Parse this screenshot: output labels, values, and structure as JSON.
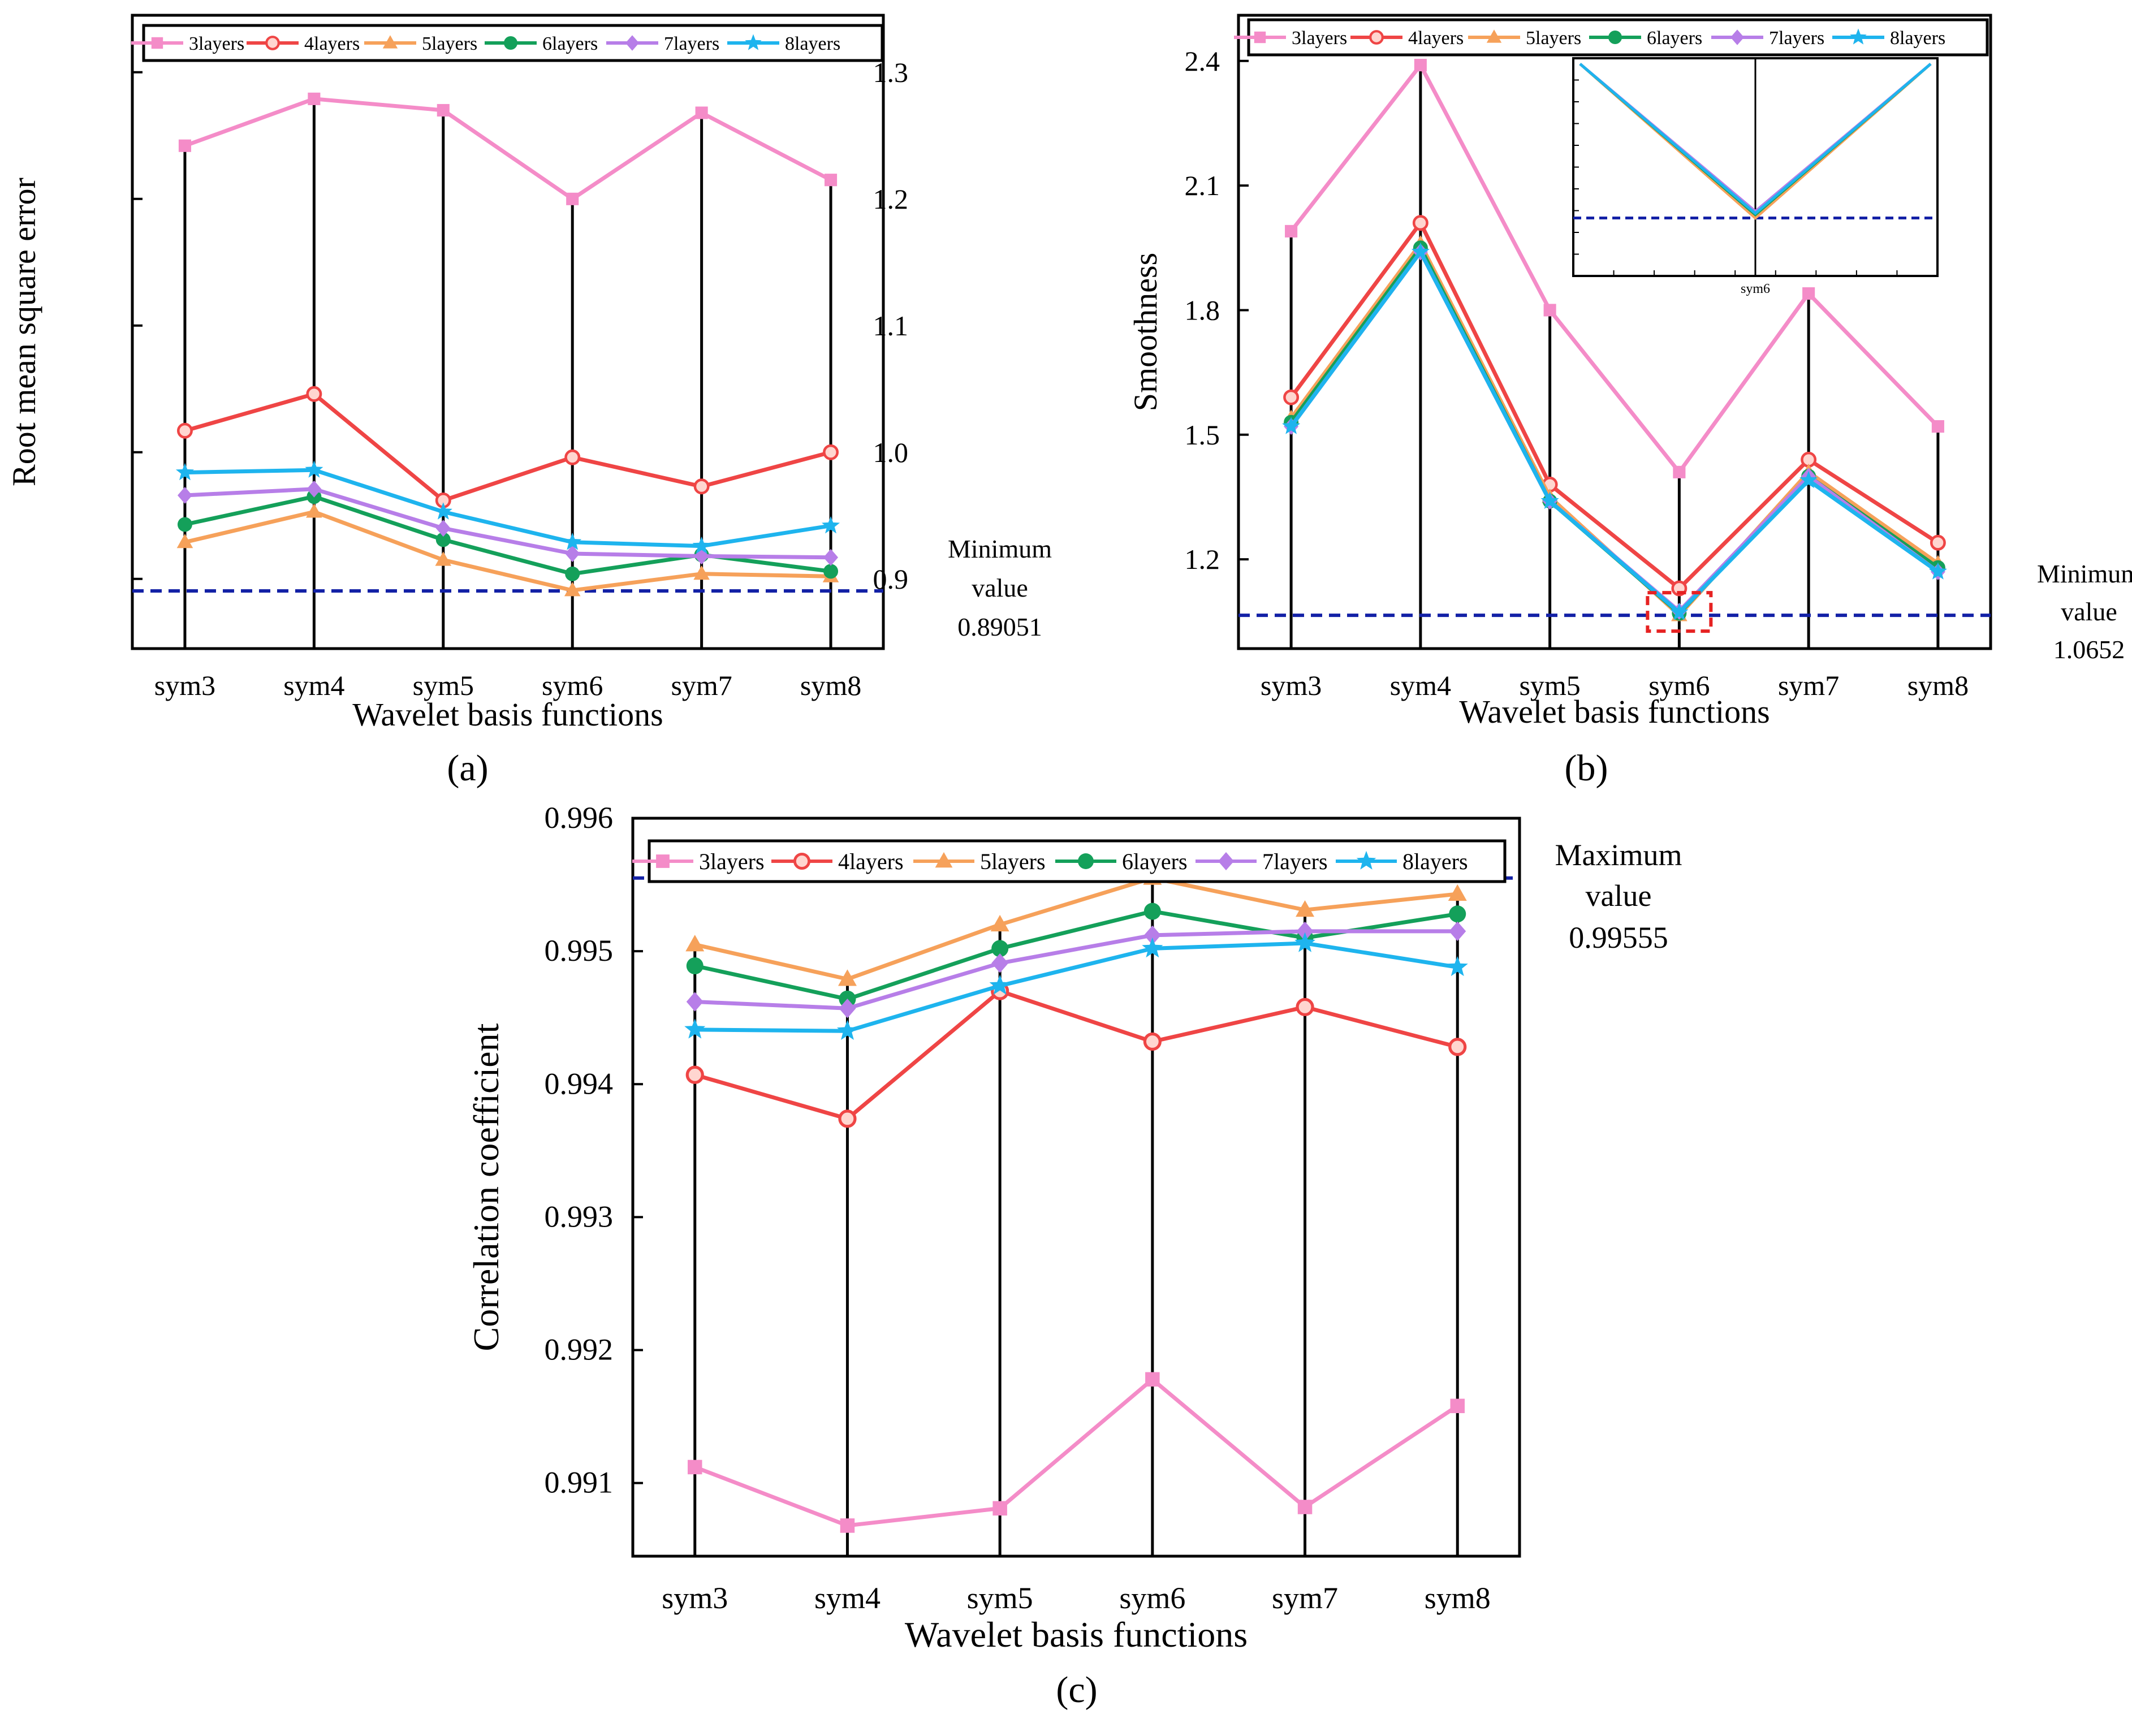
{
  "figure": {
    "panel_labels": [
      {
        "text": "(a)",
        "letter": "a"
      },
      {
        "text": "(b)",
        "letter": "b"
      },
      {
        "text": "(c)",
        "letter": "c"
      }
    ]
  },
  "colors": {
    "3layers": "#f48cc8",
    "4layers": "#ef4545",
    "5layers": "#f6a15a",
    "6layers": "#14a05a",
    "7layers": "#b77ee8",
    "8layers": "#1eb4ee",
    "reference_line": "#1321a6",
    "stems": "#000000",
    "highlight_box": "#e62222"
  },
  "legend_labels": [
    "3layers",
    "4layers",
    "5layers",
    "6layers",
    "7layers",
    "8layers"
  ],
  "chart_data": [
    {
      "id": "a",
      "type": "line",
      "panel_label": "(a)",
      "title": "",
      "xlabel": "Wavelet  basis  functions",
      "ylabel": "Root mean square error",
      "categories": [
        "sym3",
        "sym4",
        "sym5",
        "sym6",
        "sym7",
        "sym8"
      ],
      "ylim": [
        0.845,
        1.345
      ],
      "yticks": [
        0.9,
        1.0,
        1.1,
        1.2,
        1.3
      ],
      "ytick_labels": [
        "0.9",
        "1.0",
        "1.1",
        "1.2",
        "1.3"
      ],
      "stem_from": 0.845,
      "stem_to_series": "3layers",
      "reference_line": {
        "value": 0.89051,
        "label_lines": [
          "Minimum",
          "value",
          "0.89051"
        ]
      },
      "series": [
        {
          "name": "3layers",
          "marker": "square",
          "values": [
            1.242,
            1.279,
            1.27,
            1.2,
            1.268,
            1.215
          ]
        },
        {
          "name": "4layers",
          "marker": "circle",
          "values": [
            1.017,
            1.046,
            0.962,
            0.996,
            0.973,
            1.0
          ]
        },
        {
          "name": "5layers",
          "marker": "triangle",
          "values": [
            0.929,
            0.953,
            0.915,
            0.891,
            0.904,
            0.902
          ]
        },
        {
          "name": "6layers",
          "marker": "circle-filled",
          "values": [
            0.943,
            0.965,
            0.931,
            0.904,
            0.919,
            0.906
          ]
        },
        {
          "name": "7layers",
          "marker": "diamond",
          "values": [
            0.966,
            0.971,
            0.94,
            0.92,
            0.918,
            0.917
          ]
        },
        {
          "name": "8layers",
          "marker": "star",
          "values": [
            0.984,
            0.986,
            0.953,
            0.929,
            0.926,
            0.942
          ]
        }
      ]
    },
    {
      "id": "b",
      "type": "line",
      "panel_label": "(b)",
      "title": "",
      "xlabel": "Wavelet basis functions",
      "ylabel": "Smoothness",
      "categories": [
        "sym3",
        "sym4",
        "sym5",
        "sym6",
        "sym7",
        "sym8"
      ],
      "ylim": [
        0.985,
        2.51
      ],
      "yticks": [
        1.2,
        1.5,
        1.8,
        2.1,
        2.4
      ],
      "ytick_labels": [
        "1.2",
        "1.5",
        "1.8",
        "2.1",
        "2.4"
      ],
      "stem_from": 0.985,
      "stem_to_series": "3layers",
      "reference_line": {
        "value": 1.0652,
        "label_lines": [
          "Minimum",
          "value",
          "1.0652"
        ]
      },
      "highlight_category": "sym6",
      "inset": {
        "category_label": "sym6"
      },
      "series": [
        {
          "name": "3layers",
          "marker": "square",
          "values": [
            1.99,
            2.39,
            1.8,
            1.41,
            1.84,
            1.52
          ]
        },
        {
          "name": "4layers",
          "marker": "circle",
          "values": [
            1.59,
            2.01,
            1.38,
            1.13,
            1.44,
            1.24
          ]
        },
        {
          "name": "5layers",
          "marker": "triangle",
          "values": [
            1.54,
            1.96,
            1.35,
            1.0652,
            1.41,
            1.19
          ]
        },
        {
          "name": "6layers",
          "marker": "circle-filled",
          "values": [
            1.53,
            1.95,
            1.34,
            1.07,
            1.4,
            1.18
          ]
        },
        {
          "name": "7layers",
          "marker": "diamond",
          "values": [
            1.52,
            1.94,
            1.34,
            1.075,
            1.4,
            1.17
          ]
        },
        {
          "name": "8layers",
          "marker": "star",
          "values": [
            1.52,
            1.94,
            1.34,
            1.072,
            1.39,
            1.17
          ]
        }
      ]
    },
    {
      "id": "c",
      "type": "line",
      "panel_label": "(c)",
      "title": "",
      "xlabel": "Wavelet basis functions",
      "ylabel": "Correlation coefficient",
      "categories": [
        "sym3",
        "sym4",
        "sym5",
        "sym6",
        "sym7",
        "sym8"
      ],
      "ylim": [
        0.99045,
        0.996
      ],
      "yticks": [
        0.991,
        0.992,
        0.993,
        0.994,
        0.995,
        0.996
      ],
      "ytick_labels": [
        "0.991",
        "0.992",
        "0.993",
        "0.994",
        "0.995",
        "0.996"
      ],
      "stem_from": 0.99045,
      "stem_to_series": "5layers",
      "reference_line": {
        "value": 0.99555,
        "label_lines": [
          "Maximum",
          "value",
          "0.99555"
        ]
      },
      "series": [
        {
          "name": "3layers",
          "marker": "square",
          "values": [
            0.99112,
            0.99068,
            0.99081,
            0.99178,
            0.99082,
            0.99158
          ]
        },
        {
          "name": "4layers",
          "marker": "circle",
          "values": [
            0.99407,
            0.99374,
            0.9947,
            0.99432,
            0.99458,
            0.99428
          ]
        },
        {
          "name": "5layers",
          "marker": "triangle",
          "values": [
            0.99505,
            0.99479,
            0.9952,
            0.99555,
            0.99531,
            0.99543
          ]
        },
        {
          "name": "6layers",
          "marker": "circle-filled",
          "values": [
            0.99489,
            0.99464,
            0.99502,
            0.9953,
            0.9951,
            0.99528
          ]
        },
        {
          "name": "7layers",
          "marker": "diamond",
          "values": [
            0.99462,
            0.99457,
            0.99491,
            0.99512,
            0.99515,
            0.99515
          ]
        },
        {
          "name": "8layers",
          "marker": "star",
          "values": [
            0.99441,
            0.9944,
            0.99474,
            0.99502,
            0.99506,
            0.99488
          ]
        }
      ]
    }
  ]
}
